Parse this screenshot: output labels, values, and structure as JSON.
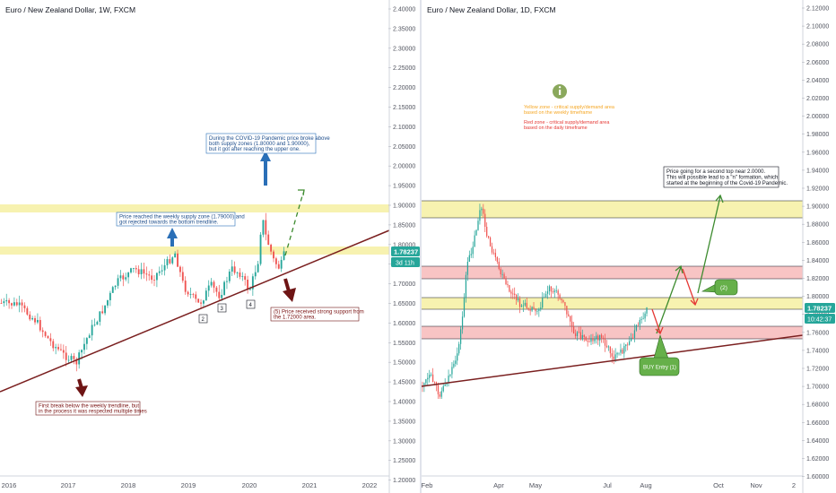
{
  "colors": {
    "yellow_zone": "#f7f2b0",
    "red_zone": "#f8c4c4",
    "trendline": "#7a1f1f",
    "bull": "#26a69a",
    "bear": "#ef5350",
    "price_label": "#26a69a",
    "blue_arrow": "#2a6fb7",
    "dark_red_arrow": "#6e1414",
    "green_arrow": "#3d8b2f",
    "red_arrow": "#e53935",
    "info_icon": "#8aa85c"
  },
  "left_panel": {
    "title": "Euro / New Zealand Dollar, 1W, FXCM",
    "price_label": "1.78237",
    "countdown": "3d 11h",
    "x_ticks": [
      "2016",
      "2017",
      "2018",
      "2019",
      "2020",
      "2021",
      "2022"
    ],
    "y_ticks": [
      "2.40000",
      "2.35000",
      "2.30000",
      "2.25000",
      "2.20000",
      "2.15000",
      "2.10000",
      "2.05000",
      "2.00000",
      "1.95000",
      "1.90000",
      "1.85000",
      "1.80000",
      "1.75000",
      "1.70000",
      "1.65000",
      "1.60000",
      "1.55000",
      "1.50000",
      "1.45000",
      "1.40000",
      "1.35000",
      "1.30000",
      "1.25000",
      "1.20000"
    ],
    "annotations": {
      "covid": [
        "During the COVID-19 Pandemic price broke above",
        "both supply zones (1.80000 and 1.90000),",
        "but it got after reaching the upper one."
      ],
      "supply": [
        "Price reached the weekly supply zone (1.79000) and",
        "got rejected towards the bottom trendline."
      ],
      "support": [
        "(5) Price received strong support from",
        "the 1.72000 area."
      ],
      "first_break": [
        "First break below the weekly trendline, but",
        "in the process it was respected multiple times"
      ]
    },
    "touch_labels": [
      "2",
      "3",
      "4"
    ]
  },
  "right_panel": {
    "title": "Euro / New Zealand Dollar, 1D, FXCM",
    "price_label": "1.78237",
    "countdown": "10:42:37",
    "x_ticks": [
      "Feb",
      "Apr",
      "May",
      "Jul",
      "Aug",
      "Oct",
      "Nov",
      "2"
    ],
    "y_ticks": [
      "2.12000",
      "2.10000",
      "2.08000",
      "2.06000",
      "2.04000",
      "2.02000",
      "2.00000",
      "1.98000",
      "1.96000",
      "1.94000",
      "1.92000",
      "1.90000",
      "1.88000",
      "1.86000",
      "1.84000",
      "1.82000",
      "1.80000",
      "1.78000",
      "1.76000",
      "1.74000",
      "1.72000",
      "1.70000",
      "1.68000",
      "1.66000",
      "1.64000",
      "1.62000",
      "1.60000"
    ],
    "legend": {
      "yellow": [
        "Yellow zone - critical supply/demand area",
        "based on the weekly timeframe"
      ],
      "red": [
        "Red zone - critical supply/demand area",
        "based on the daily timeframe"
      ]
    },
    "annotations": {
      "second_top": [
        "Price going for a second top near 2.0000.",
        "This will possible lead to a \"n\" formation, which",
        "started at the beginning of the Covid-19 Pandemic."
      ],
      "two_label": "(2)",
      "buy_label": "BUY Entry (1)"
    }
  },
  "chart_data": [
    {
      "type": "candlestick",
      "title": "Euro / New Zealand Dollar, 1W, FXCM",
      "x_ticks": [
        "2016",
        "2017",
        "2018",
        "2019",
        "2020",
        "2021",
        "2022"
      ],
      "ylim": [
        1.2,
        2.4
      ],
      "last_price": 1.78237,
      "zones": [
        {
          "type": "supply",
          "low": 1.885,
          "high": 1.905
        },
        {
          "type": "supply",
          "low": 1.775,
          "high": 1.795
        }
      ],
      "trendline": {
        "from": [
          "2016",
          1.4
        ],
        "to": [
          "2022",
          1.84
        ]
      },
      "close_path": [
        {
          "x": 2016.0,
          "y": 1.67
        },
        {
          "x": 2016.3,
          "y": 1.66
        },
        {
          "x": 2016.6,
          "y": 1.55
        },
        {
          "x": 2016.9,
          "y": 1.48
        },
        {
          "x": 2017.0,
          "y": 1.46
        },
        {
          "x": 2017.3,
          "y": 1.52
        },
        {
          "x": 2017.5,
          "y": 1.6
        },
        {
          "x": 2017.8,
          "y": 1.66
        },
        {
          "x": 2018.0,
          "y": 1.7
        },
        {
          "x": 2018.3,
          "y": 1.73
        },
        {
          "x": 2018.6,
          "y": 1.7
        },
        {
          "x": 2018.8,
          "y": 1.79
        },
        {
          "x": 2018.9,
          "y": 1.72
        },
        {
          "x": 2019.1,
          "y": 1.66
        },
        {
          "x": 2019.4,
          "y": 1.7
        },
        {
          "x": 2019.6,
          "y": 1.72
        },
        {
          "x": 2019.9,
          "y": 1.74
        },
        {
          "x": 2020.0,
          "y": 1.68
        },
        {
          "x": 2020.2,
          "y": 1.75
        },
        {
          "x": 2020.25,
          "y": 1.9
        },
        {
          "x": 2020.35,
          "y": 1.82
        },
        {
          "x": 2020.5,
          "y": 1.75
        },
        {
          "x": 2020.6,
          "y": 1.78
        }
      ]
    },
    {
      "type": "candlestick",
      "title": "Euro / New Zealand Dollar, 1D, FXCM",
      "x_ticks": [
        "Feb",
        "Apr",
        "May",
        "Jul",
        "Aug",
        "Oct",
        "Nov",
        "2"
      ],
      "ylim": [
        1.6,
        2.12
      ],
      "last_price": 1.78237,
      "zones": [
        {
          "type": "weekly",
          "low": 1.884,
          "high": 1.903
        },
        {
          "type": "daily",
          "low": 1.816,
          "high": 1.83
        },
        {
          "type": "weekly",
          "low": 1.785,
          "high": 1.797
        },
        {
          "type": "daily",
          "low": 1.758,
          "high": 1.772
        }
      ],
      "trendline": {
        "from": [
          "Feb",
          1.698
        ],
        "to": [
          "end",
          1.755
        ]
      },
      "close_path": [
        {
          "x": "Feb",
          "y": 1.7
        },
        {
          "x": "Feb",
          "y": 1.72
        },
        {
          "x": "Mar",
          "y": 1.7
        },
        {
          "x": "Mar",
          "y": 1.78
        },
        {
          "x": "Mar",
          "y": 1.85
        },
        {
          "x": "Mar",
          "y": 1.88
        },
        {
          "x": "Apr",
          "y": 1.84
        },
        {
          "x": "Apr",
          "y": 1.81
        },
        {
          "x": "May",
          "y": 1.8
        },
        {
          "x": "May",
          "y": 1.79
        },
        {
          "x": "Jun",
          "y": 1.75
        },
        {
          "x": "Jun",
          "y": 1.74
        },
        {
          "x": "Jul",
          "y": 1.72
        },
        {
          "x": "Jul",
          "y": 1.75
        },
        {
          "x": "Aug",
          "y": 1.78
        }
      ]
    }
  ]
}
